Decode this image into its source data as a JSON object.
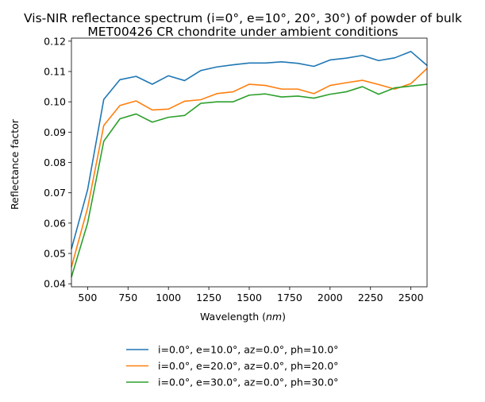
{
  "chart_data": {
    "type": "line",
    "title": "Vis-NIR reflectance spectrum (i=0°, e=10°, 20°, 30°) of powder of bulk",
    "subtitle": "MET00426 CR chondrite under ambient conditions",
    "xlabel": "Wavelength",
    "xlabel_unit": "nm",
    "ylabel": "Reflectance factor",
    "xlim": [
      400,
      2600
    ],
    "ylim": [
      0.039,
      0.121
    ],
    "xticks": [
      500,
      750,
      1000,
      1250,
      1500,
      1750,
      2000,
      2250,
      2500
    ],
    "yticks": [
      0.04,
      0.05,
      0.06,
      0.07,
      0.08,
      0.09,
      0.1,
      0.11,
      0.12
    ],
    "xtick_labels": [
      "500",
      "750",
      "1000",
      "1250",
      "1500",
      "1750",
      "2000",
      "2250",
      "2500"
    ],
    "ytick_labels": [
      "0.04",
      "0.05",
      "0.06",
      "0.07",
      "0.08",
      "0.09",
      "0.10",
      "0.11",
      "0.12"
    ],
    "grid": false,
    "legend_position": "bottom-center-outside",
    "x": [
      400,
      500,
      600,
      700,
      800,
      900,
      1000,
      1100,
      1200,
      1300,
      1400,
      1500,
      1600,
      1700,
      1800,
      1900,
      2000,
      2100,
      2200,
      2300,
      2400,
      2500,
      2600
    ],
    "series": [
      {
        "name": "i=0.0°, e=10.0°, az=0.0°, ph=10.0°",
        "color": "#1f77b4",
        "values": [
          0.0515,
          0.071,
          0.1008,
          0.1073,
          0.1084,
          0.1058,
          0.1086,
          0.107,
          0.1103,
          0.1115,
          0.1122,
          0.1128,
          0.1128,
          0.1132,
          0.1127,
          0.1117,
          0.1138,
          0.1144,
          0.1153,
          0.1136,
          0.1145,
          0.1166,
          0.112
        ]
      },
      {
        "name": "i=0.0°, e=20.0°, az=0.0°, ph=20.0°",
        "color": "#ff7f0e",
        "values": [
          0.0455,
          0.065,
          0.0922,
          0.0988,
          0.1003,
          0.0973,
          0.0976,
          0.1002,
          0.1007,
          0.1027,
          0.1033,
          0.1058,
          0.1054,
          0.1042,
          0.1042,
          0.1027,
          0.1054,
          0.1063,
          0.1071,
          0.1057,
          0.1042,
          0.106,
          0.111
        ]
      },
      {
        "name": "i=0.0°, e=30.0°, az=0.0°, ph=30.0°",
        "color": "#2ca02c",
        "values": [
          0.0422,
          0.06,
          0.087,
          0.0944,
          0.096,
          0.0933,
          0.0949,
          0.0955,
          0.0995,
          0.1,
          0.1,
          0.1022,
          0.1026,
          0.1016,
          0.1019,
          0.1012,
          0.1025,
          0.1033,
          0.105,
          0.1025,
          0.1046,
          0.1052,
          0.1058
        ]
      }
    ]
  }
}
